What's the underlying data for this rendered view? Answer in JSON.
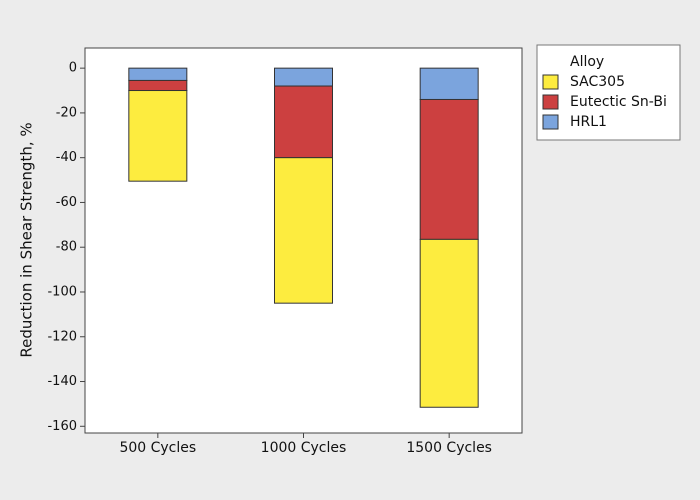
{
  "chart_data": {
    "type": "stacked_bar",
    "y_label": "Reduction in Shear Strength, %",
    "legend_title": "Alloy",
    "legend_position": "right",
    "categories": [
      "500 Cycles",
      "1000 Cycles",
      "1500 Cycles"
    ],
    "series": [
      {
        "name": "SAC305",
        "color": "#fdec3f",
        "values": [
          -40.5,
          -65,
          -75
        ]
      },
      {
        "name": "Eutectic Sn-Bi",
        "color": "#cc4040",
        "values": [
          -4.5,
          -32,
          -62.5
        ]
      },
      {
        "name": "HRL1",
        "color": "#7ba4dd",
        "values": [
          -5.5,
          -8,
          -14
        ]
      }
    ],
    "ylim": [
      -163,
      9
    ],
    "yticks": [
      0,
      -20,
      -40,
      -60,
      -80,
      -100,
      -120,
      -140,
      -160
    ]
  }
}
